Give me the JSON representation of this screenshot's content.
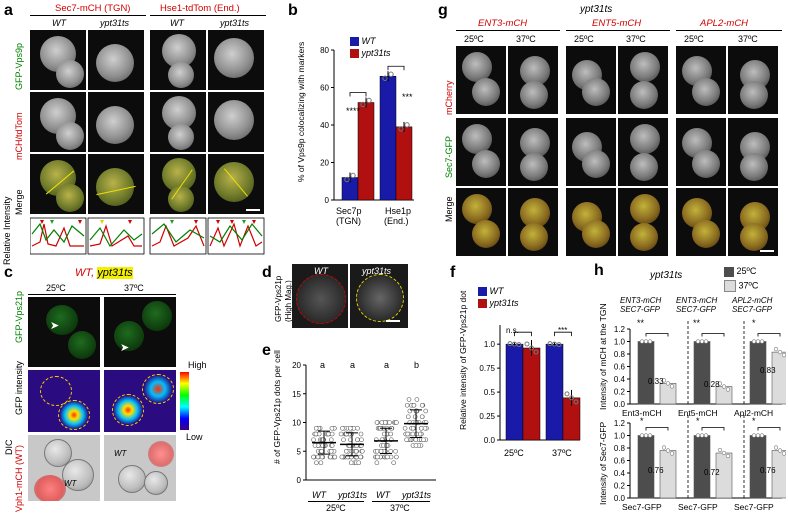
{
  "panels": {
    "a": {
      "label": "a",
      "headers": [
        "Sec7-mCH (TGN)",
        "Hse1-tdTom (End.)"
      ],
      "strains": [
        "WT",
        "ypt31ts",
        "WT",
        "ypt31ts"
      ],
      "row_labels": [
        "GFP-Vps9p",
        "mCH/tdTom",
        "Merge"
      ],
      "profile_label": "Relative Intensity"
    },
    "b": {
      "label": "b",
      "ylabel": "% of Vps9p colocalizing with markers",
      "legend": [
        "WT",
        "ypt31ts"
      ],
      "significance": [
        "****",
        "***"
      ],
      "xcat_line1": [
        "Sec7p",
        "Hse1p"
      ],
      "xcat_line2": [
        "(TGN)",
        "(End.)"
      ]
    },
    "c": {
      "label": "c",
      "title_wt": "WT,",
      "title_mut": "ypt31ts",
      "temps": [
        "25ºC",
        "37ºC"
      ],
      "row_labels": [
        "GFP-Vps21p",
        "GFP intensity",
        "DIC",
        "Vph1-mCH (WT)"
      ],
      "colorbar": [
        "High",
        "Low"
      ],
      "wt_tag": "WT"
    },
    "d": {
      "label": "d",
      "ylabel": "GFP-Vps21p",
      "ylabel2": "(High Mag.)",
      "strains": [
        "WT",
        "ypt31ts"
      ]
    },
    "e": {
      "label": "e",
      "ylabel": "# of GFP-Vps21p dots per cell",
      "strains": [
        "WT",
        "ypt31ts",
        "WT",
        "ypt31ts"
      ],
      "temps": [
        "25ºC",
        "37ºC"
      ],
      "letters": [
        "a",
        "a",
        "a",
        "b"
      ]
    },
    "f": {
      "label": "f",
      "ylabel": "Relative intensity of GFP-Vps21p dot",
      "legend": [
        "WT",
        "ypt31ts"
      ],
      "significance": [
        "n.s.",
        "***"
      ],
      "temps": [
        "25ºC",
        "37ºC"
      ]
    },
    "g": {
      "label": "g",
      "title": "ypt31ts",
      "headers": [
        "ENT3-mCH",
        "ENT5-mCH",
        "APL2-mCH"
      ],
      "temps": [
        "25ºC",
        "37ºC",
        "25ºC",
        "37ºC",
        "25ºC",
        "37ºC"
      ],
      "row_labels": [
        "mCherry",
        "Sec7-GFP",
        "Merge"
      ]
    },
    "h": {
      "label": "h",
      "title": "ypt31ts",
      "legend": [
        "25ºC",
        "37ºC"
      ],
      "col_headers": [
        [
          "ENT3-mCH",
          "SEC7-GFP"
        ],
        [
          "ENT3-mCH",
          "SEC7-GFP"
        ],
        [
          "APL2-mCH",
          "SEC7-GFP"
        ]
      ],
      "ylabel_top": "Intensity of mCH at the TGN",
      "ylabel_bottom": "Intensity of Sec7-GFP",
      "sig_top": [
        "**",
        "**",
        "*"
      ],
      "sig_bottom": [
        "*",
        "*",
        "*"
      ],
      "xlabels_top": [
        "Ent3-mCH",
        "Ent5-mCH",
        "Apl2-mCH"
      ],
      "xlabels_bottom": [
        "Sec7-GFP",
        "Sec7-GFP",
        "Sec7-GFP"
      ],
      "values_top": [
        "0.33",
        "0.28",
        "0.83"
      ],
      "values_bottom": [
        "0.76",
        "0.72",
        "0.76"
      ]
    }
  },
  "chart_data": [
    {
      "type": "bar",
      "panel": "b",
      "categories": [
        "Sec7p (TGN)",
        "Hse1p (End.)"
      ],
      "series": [
        {
          "name": "WT",
          "color": "#1a1aa8",
          "values": [
            12,
            66
          ]
        },
        {
          "name": "ypt31ts",
          "color": "#b01010",
          "values": [
            52,
            39
          ]
        }
      ],
      "ylabel": "% of Vps9p colocalizing with markers",
      "ylim": [
        0,
        80
      ],
      "yticks": [
        0,
        20,
        40,
        60,
        80
      ]
    },
    {
      "type": "scatter",
      "panel": "e",
      "categories": [
        "WT 25ºC",
        "ypt31ts 25ºC",
        "WT 37ºC",
        "ypt31ts 37ºC"
      ],
      "means": [
        6.5,
        6.2,
        6.8,
        9.8
      ],
      "sd": [
        2.0,
        2.0,
        2.2,
        2.4
      ],
      "ylabel": "# of GFP-Vps21p dots per cell",
      "ylim": [
        0,
        20
      ],
      "yticks": [
        0,
        5,
        10,
        15,
        20
      ]
    },
    {
      "type": "bar",
      "panel": "f",
      "categories": [
        "25ºC",
        "37ºC"
      ],
      "series": [
        {
          "name": "WT",
          "color": "#1a1aa8",
          "values": [
            1.0,
            1.0
          ]
        },
        {
          "name": "ypt31ts",
          "color": "#b01010",
          "values": [
            0.96,
            0.44
          ]
        }
      ],
      "ylabel": "Relative intensity of GFP-Vps21p dot",
      "ylim": [
        0,
        1.2
      ],
      "yticks": [
        0,
        0.25,
        0.5,
        0.75,
        1.0
      ]
    },
    {
      "type": "bar",
      "panel": "h-top",
      "categories": [
        "Ent3-mCH",
        "Ent5-mCH",
        "Apl2-mCH"
      ],
      "series": [
        {
          "name": "25ºC",
          "color": "#4d4d4d",
          "values": [
            1.0,
            1.0,
            1.0
          ]
        },
        {
          "name": "37ºC",
          "color": "#dcdcdc",
          "values": [
            0.33,
            0.28,
            0.83
          ]
        }
      ],
      "ylabel": "Intensity of mCH at the TGN",
      "ylim": [
        0,
        1.2
      ],
      "yticks": [
        0,
        0.2,
        0.4,
        0.6,
        0.8,
        1.0,
        1.2
      ]
    },
    {
      "type": "bar",
      "panel": "h-bottom",
      "categories": [
        "Sec7-GFP",
        "Sec7-GFP",
        "Sec7-GFP"
      ],
      "series": [
        {
          "name": "25ºC",
          "color": "#4d4d4d",
          "values": [
            1.0,
            1.0,
            1.0
          ]
        },
        {
          "name": "37ºC",
          "color": "#dcdcdc",
          "values": [
            0.76,
            0.72,
            0.76
          ]
        }
      ],
      "ylabel": "Intensity of Sec7-GFP",
      "ylim": [
        0,
        1.2
      ],
      "yticks": [
        0,
        0.2,
        0.4,
        0.6,
        0.8,
        1.0,
        1.2
      ]
    }
  ]
}
